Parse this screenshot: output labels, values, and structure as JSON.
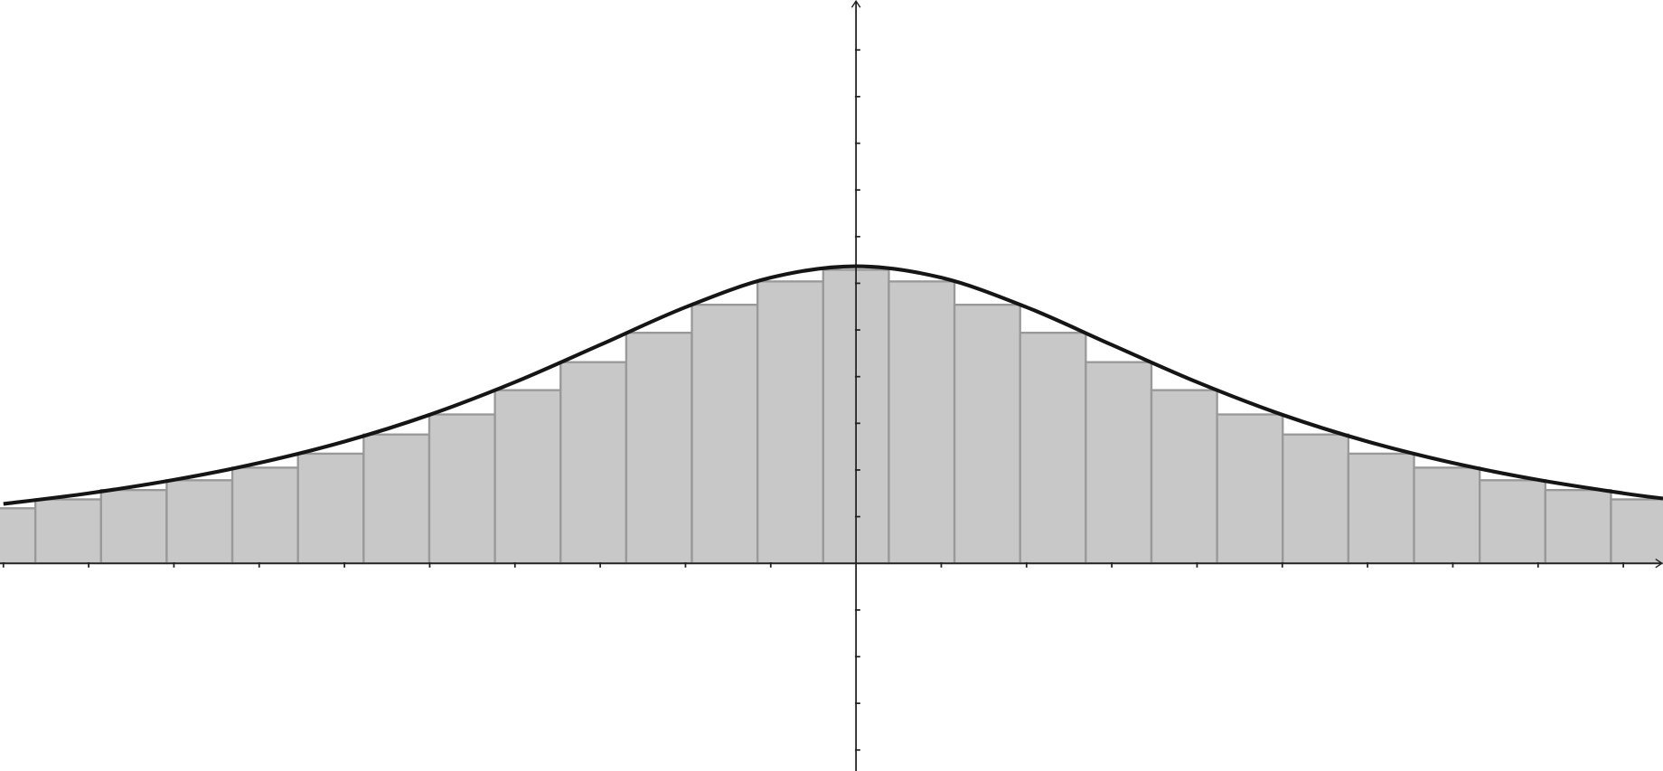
{
  "chart_data": {
    "type": "histogram",
    "bins": [
      -1.0395,
      -0.9625,
      -0.8855,
      -0.8085,
      -0.7315,
      -0.6545,
      -0.5775,
      -0.5005,
      -0.4235,
      -0.3465,
      -0.2695,
      -0.1925,
      -0.1155,
      -0.0385,
      0.0385,
      0.1155,
      0.1925,
      0.2695,
      0.3465,
      0.4235,
      0.5005,
      0.5775,
      0.6545,
      0.7315,
      0.8085,
      0.8855,
      0.9625
    ],
    "values": [
      0.118,
      0.137,
      0.157,
      0.178,
      0.205,
      0.235,
      0.276,
      0.319,
      0.371,
      0.431,
      0.494,
      0.554,
      0.604,
      0.629,
      0.604,
      0.554,
      0.494,
      0.431,
      0.371,
      0.319,
      0.276,
      0.235,
      0.205,
      0.178,
      0.157,
      0.137
    ],
    "color": "#c8c8c8",
    "edge_color": "#999999",
    "line": {
      "x": [
        -1.0,
        -0.9,
        -0.8,
        -0.7,
        -0.6,
        -0.5,
        -0.4,
        -0.3,
        -0.2,
        -0.1,
        0,
        0.1,
        0.2,
        0.3,
        0.4,
        0.5,
        0.6,
        0.7,
        0.8,
        0.9,
        0.9465
      ],
      "values": [
        0.1273,
        0.1501,
        0.1788,
        0.2151,
        0.2609,
        0.3183,
        0.3882,
        0.4681,
        0.5488,
        0.6121,
        0.6366,
        0.6121,
        0.5488,
        0.4681,
        0.3882,
        0.3183,
        0.2609,
        0.2151,
        0.1788,
        0.1501,
        0.1389
      ],
      "color": "#151515"
    },
    "xlim": [
      -1.004,
      0.9465
    ],
    "ylim": [
      -0.445,
      1.207
    ],
    "xticks": [
      -1.0,
      -0.9,
      -0.8,
      -0.7,
      -0.6,
      -0.5,
      -0.4,
      -0.3,
      -0.2,
      -0.1,
      0.1,
      0.2,
      0.3,
      0.4,
      0.5,
      0.6,
      0.7,
      0.8,
      0.9
    ],
    "yticks": [
      -0.4,
      -0.3,
      -0.2,
      -0.1,
      0.1,
      0.2,
      0.3,
      0.4,
      0.5,
      0.6,
      0.7,
      0.8,
      0.9,
      1.0,
      1.1
    ]
  }
}
